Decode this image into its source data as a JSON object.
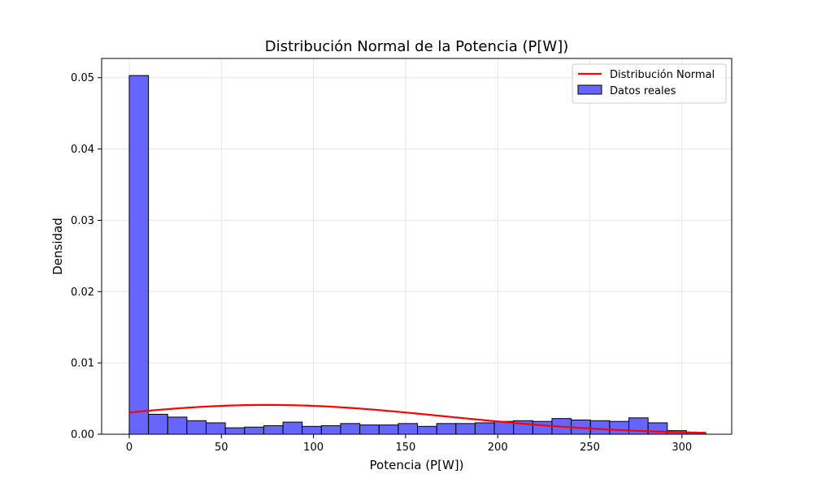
{
  "chart_data": {
    "type": "bar",
    "title": "Distribución Normal de la Potencia (P[W])",
    "xlabel": "Potencia (P[W])",
    "ylabel": "Densidad",
    "xlim": [
      -15,
      327
    ],
    "ylim": [
      0,
      0.0527
    ],
    "xticks": [
      0,
      50,
      100,
      150,
      200,
      250,
      300
    ],
    "xtick_labels": [
      "0",
      "50",
      "100",
      "150",
      "200",
      "250",
      "300"
    ],
    "yticks": [
      0,
      0.01,
      0.02,
      0.03,
      0.04,
      0.05
    ],
    "ytick_labels": [
      "0.00",
      "0.01",
      "0.02",
      "0.03",
      "0.04",
      "0.05"
    ],
    "grid": true,
    "legend_position": "upper right",
    "series": [
      {
        "name": "Datos reales",
        "kind": "histogram",
        "color": "#6666ff",
        "edge_color": "#000000",
        "bin_edges": [
          0,
          10.43,
          20.86,
          31.29,
          41.72,
          52.15,
          62.58,
          73.01,
          83.44,
          93.87,
          104.3,
          114.73,
          125.16,
          135.59,
          146.02,
          156.45,
          166.88,
          177.31,
          187.74,
          198.17,
          208.6,
          219.03,
          229.46,
          239.89,
          250.32,
          260.75,
          271.18,
          281.61,
          292.04,
          302.47,
          312.9
        ],
        "values": [
          0.0503,
          0.0028,
          0.0024,
          0.0019,
          0.0016,
          0.0009,
          0.001,
          0.0012,
          0.0017,
          0.0011,
          0.0012,
          0.0015,
          0.0013,
          0.0013,
          0.0015,
          0.0011,
          0.0015,
          0.0015,
          0.0016,
          0.0018,
          0.0019,
          0.0018,
          0.0022,
          0.002,
          0.0019,
          0.0018,
          0.0023,
          0.0016,
          0.0005,
          0.0002
        ]
      },
      {
        "name": "Distribución Normal",
        "kind": "line",
        "color": "#ff0000",
        "mean": 75,
        "std": 97,
        "x_range": [
          0,
          312.9
        ]
      }
    ]
  }
}
